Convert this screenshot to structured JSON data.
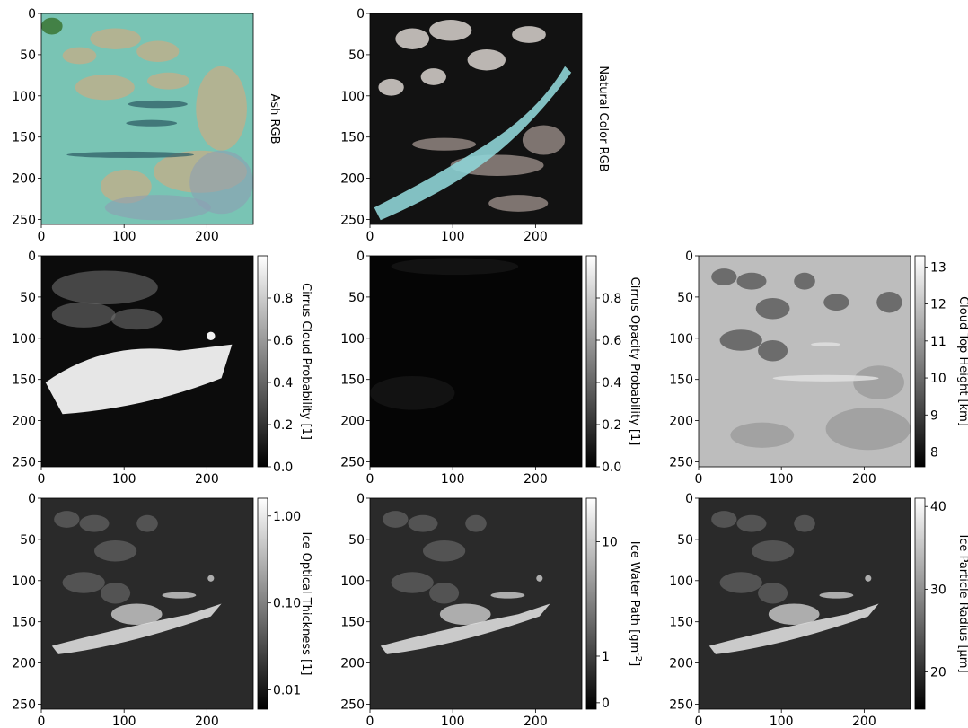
{
  "chart_data": [
    {
      "type": "heatmap",
      "kind": "rgb",
      "label": "Ash RGB",
      "xlim": [
        0,
        256
      ],
      "ylim": [
        256,
        0
      ],
      "xticks": [
        "0",
        "100",
        "200"
      ],
      "yticks": [
        "0",
        "50",
        "100",
        "150",
        "200",
        "250"
      ],
      "colors": {
        "base": "#79c4b4",
        "feature_a": "#c6ad87",
        "feature_b": "#8d9fb3",
        "feature_c": "#2f5f67",
        "feature_d": "#3d7a3a"
      }
    },
    {
      "type": "heatmap",
      "kind": "rgb",
      "label": "Natural Color RGB",
      "xlim": [
        0,
        256
      ],
      "ylim": [
        256,
        0
      ],
      "xticks": [
        "0",
        "100",
        "200"
      ],
      "yticks": [
        "0",
        "50",
        "100",
        "150",
        "200",
        "250"
      ],
      "colors": {
        "base": "#121212",
        "feature_a": "#b9a9a3",
        "feature_b": "#8fd4d6",
        "feature_c": "#d9d4cf"
      }
    },
    {
      "type": "heatmap",
      "kind": "gray",
      "label": "Cirrus Cloud Probability [1]",
      "xlim": [
        0,
        256
      ],
      "ylim": [
        256,
        0
      ],
      "xticks": [
        "0",
        "100",
        "200"
      ],
      "yticks": [
        "0",
        "50",
        "100",
        "150",
        "200",
        "250"
      ],
      "scale": "linear",
      "range": [
        0,
        1
      ],
      "colorbar_ticks": [
        {
          "v": 0.0,
          "t": "0.0"
        },
        {
          "v": 0.2,
          "t": "0.2"
        },
        {
          "v": 0.4,
          "t": "0.4"
        },
        {
          "v": 0.6,
          "t": "0.6"
        },
        {
          "v": 0.8,
          "t": "0.8"
        }
      ],
      "colors": {
        "base": "#0c0c0c",
        "feature_a": "#f2f2f2",
        "feature_b": "#6e6e6e"
      }
    },
    {
      "type": "heatmap",
      "kind": "gray",
      "label": "Cirrus Opacity Probability [1]",
      "xlim": [
        0,
        256
      ],
      "ylim": [
        256,
        0
      ],
      "xticks": [
        "0",
        "100",
        "200"
      ],
      "yticks": [
        "0",
        "50",
        "100",
        "150",
        "200",
        "250"
      ],
      "scale": "linear",
      "range": [
        0,
        1
      ],
      "colorbar_ticks": [
        {
          "v": 0.0,
          "t": "0.0"
        },
        {
          "v": 0.2,
          "t": "0.2"
        },
        {
          "v": 0.4,
          "t": "0.4"
        },
        {
          "v": 0.6,
          "t": "0.6"
        },
        {
          "v": 0.8,
          "t": "0.8"
        }
      ],
      "colors": {
        "base": "#050505",
        "feature_a": "#1a1a1a"
      }
    },
    {
      "type": "heatmap",
      "kind": "gray",
      "label": "Cloud Top Height [km]",
      "xlim": [
        0,
        256
      ],
      "ylim": [
        256,
        0
      ],
      "xticks": [
        "0",
        "100",
        "200"
      ],
      "yticks": [
        "0",
        "50",
        "100",
        "150",
        "200",
        "250"
      ],
      "scale": "linear",
      "range": [
        7.6,
        13.3
      ],
      "colorbar_ticks": [
        {
          "v": 8,
          "t": "8"
        },
        {
          "v": 9,
          "t": "9"
        },
        {
          "v": 10,
          "t": "10"
        },
        {
          "v": 11,
          "t": "11"
        },
        {
          "v": 12,
          "t": "12"
        },
        {
          "v": 13,
          "t": "13"
        }
      ],
      "colors": {
        "base": "#bdbdbd",
        "feature_a": "#4a4a4a",
        "feature_b": "#8f8f8f",
        "feature_c": "#e0e0e0"
      }
    },
    {
      "type": "heatmap",
      "kind": "gray",
      "label": "Ice Optical Thickness [1]",
      "xlim": [
        0,
        256
      ],
      "ylim": [
        256,
        0
      ],
      "xticks": [
        "0",
        "100",
        "200"
      ],
      "yticks": [
        "0",
        "50",
        "100",
        "150",
        "200",
        "250"
      ],
      "scale": "log",
      "range": [
        0.006,
        1.6
      ],
      "colorbar_ticks": [
        {
          "v": 0.01,
          "t": "0.01"
        },
        {
          "v": 0.1,
          "t": "0.10"
        },
        {
          "v": 1.0,
          "t": "1.00"
        }
      ],
      "colors": {
        "base": "#2a2a2a",
        "feature_a": "#5e5e5e",
        "feature_b": "#e6e6e6"
      }
    },
    {
      "type": "heatmap",
      "kind": "gray",
      "label": "Ice Water Path [gm$^{-2}$]",
      "xlim": [
        0,
        256
      ],
      "ylim": [
        256,
        0
      ],
      "xticks": [
        "0",
        "100",
        "200"
      ],
      "yticks": [
        "0",
        "50",
        "100",
        "150",
        "200",
        "250"
      ],
      "scale": "symlog",
      "range": [
        -0.1,
        20
      ],
      "colorbar_ticks": [
        {
          "v": 0,
          "t": "0"
        },
        {
          "v": 1,
          "t": "1"
        },
        {
          "v": 10,
          "t": "10"
        }
      ],
      "colors": {
        "base": "#2a2a2a",
        "feature_a": "#5e5e5e",
        "feature_b": "#e6e6e6"
      }
    },
    {
      "type": "heatmap",
      "kind": "gray",
      "label": "Ice Particle Radius [μm]",
      "xlim": [
        0,
        256
      ],
      "ylim": [
        256,
        0
      ],
      "xticks": [
        "0",
        "100",
        "200"
      ],
      "yticks": [
        "0",
        "50",
        "100",
        "150",
        "200",
        "250"
      ],
      "scale": "linear",
      "range": [
        15.5,
        41
      ],
      "colorbar_ticks": [
        {
          "v": 20,
          "t": "20"
        },
        {
          "v": 30,
          "t": "30"
        },
        {
          "v": 40,
          "t": "40"
        }
      ],
      "colors": {
        "base": "#2a2a2a",
        "feature_a": "#5e5e5e",
        "feature_b": "#e6e6e6"
      }
    }
  ]
}
